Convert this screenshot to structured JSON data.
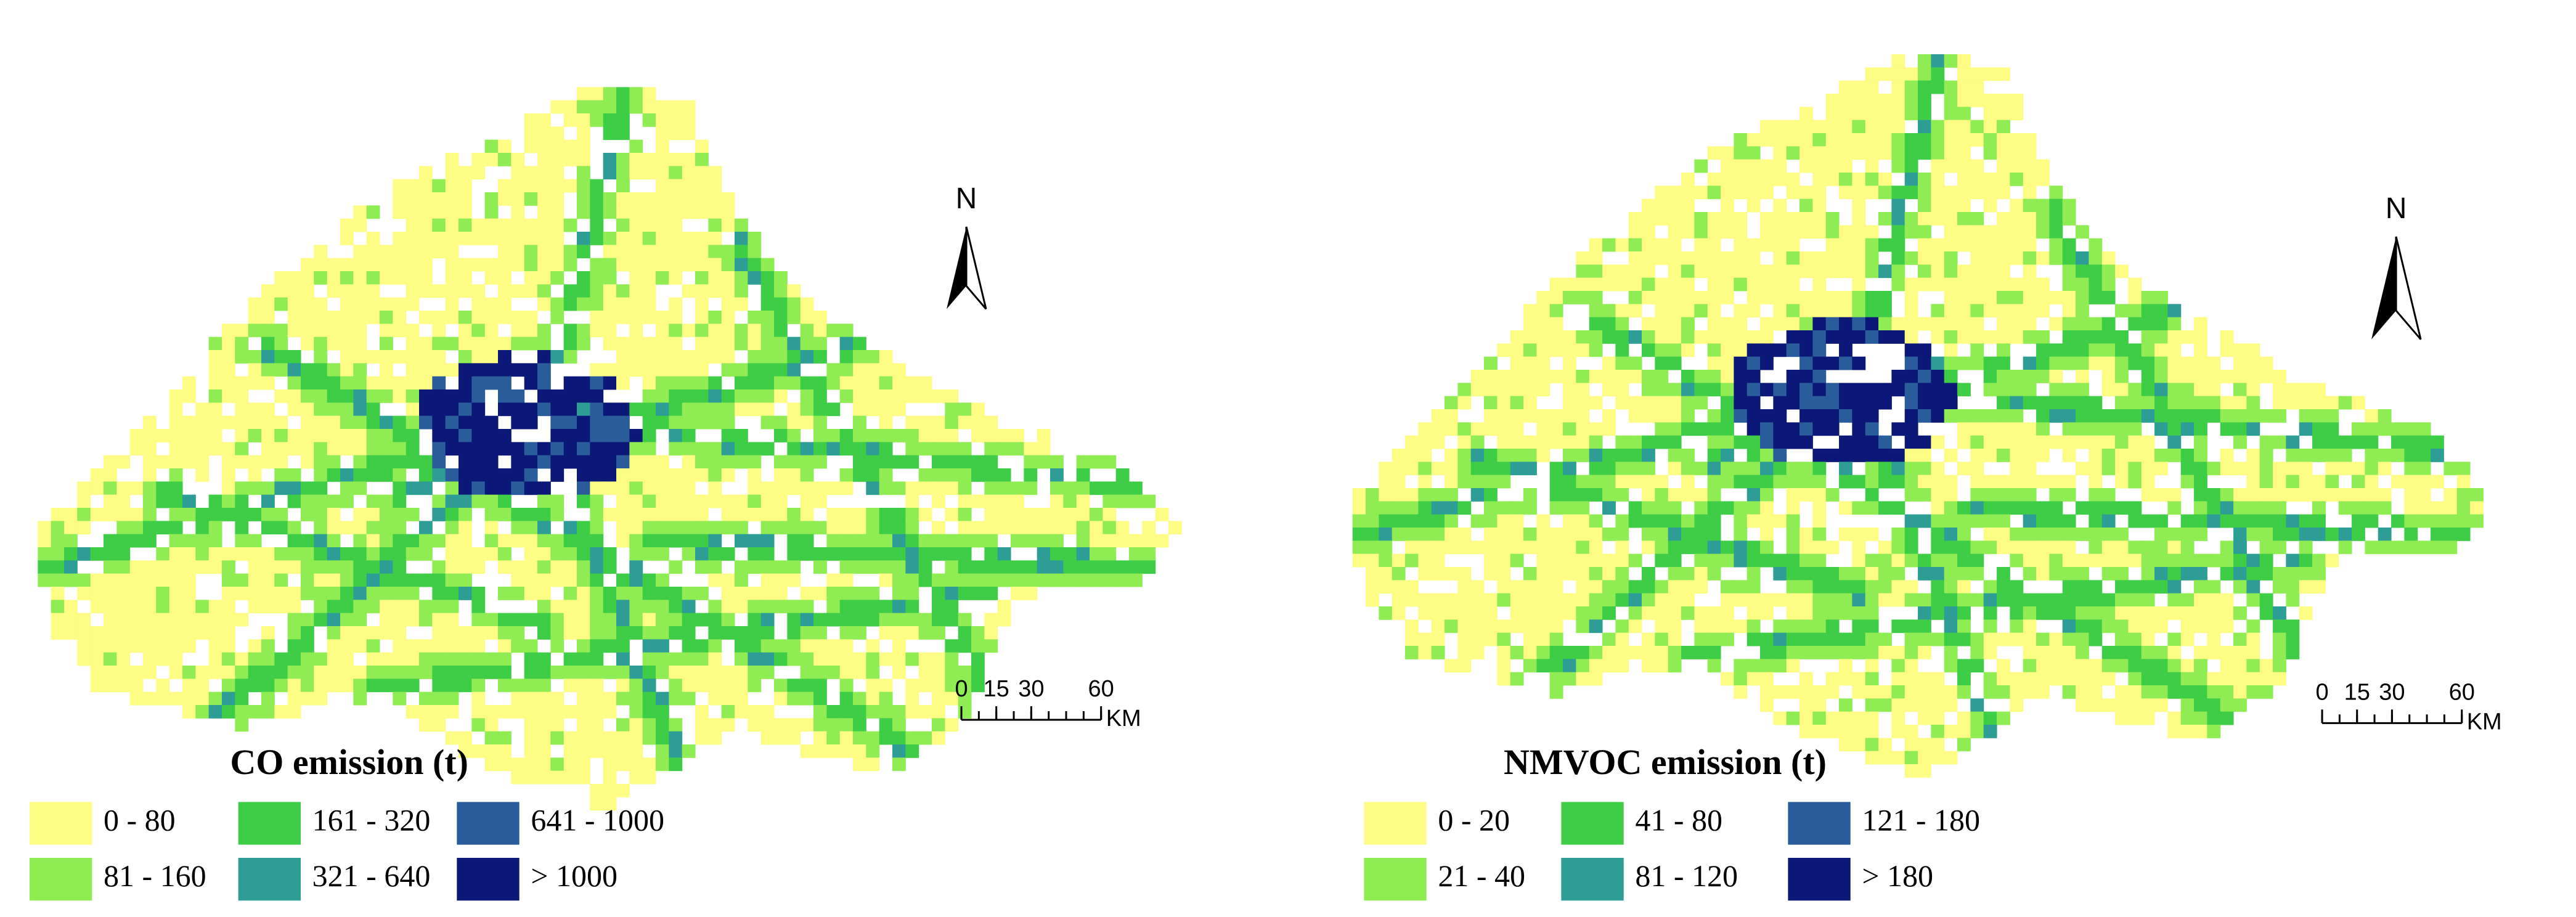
{
  "maps": [
    {
      "legend": {
        "title": "CO emission (t)",
        "items": [
          {
            "label": "0 - 80",
            "color": "#fdfd85"
          },
          {
            "label": "81 - 160",
            "color": "#8fec52"
          },
          {
            "label": "161 - 320",
            "color": "#3fcd47"
          },
          {
            "label": "321 - 640",
            "color": "#2e9d95"
          },
          {
            "label": "641 - 1000",
            "color": "#2a5c9c"
          },
          {
            "label": "> 1000",
            "color": "#0c1877"
          }
        ]
      },
      "north": "N",
      "scale_bar": {
        "ticks": [
          0,
          15,
          30,
          60
        ],
        "unit": "KM"
      }
    },
    {
      "legend": {
        "title": "NMVOC emission (t)",
        "items": [
          {
            "label": "0 - 20",
            "color": "#fdfd85"
          },
          {
            "label": "21 - 40",
            "color": "#8fec52"
          },
          {
            "label": "41 - 80",
            "color": "#3fcd47"
          },
          {
            "label": "81 - 120",
            "color": "#2e9d95"
          },
          {
            "label": "121 - 180",
            "color": "#2a5c9c"
          },
          {
            "label": "> 180",
            "color": "#0c1877"
          }
        ]
      },
      "north": "N",
      "scale_bar": {
        "ticks": [
          0,
          15,
          30,
          60
        ],
        "unit": "KM"
      }
    }
  ]
}
